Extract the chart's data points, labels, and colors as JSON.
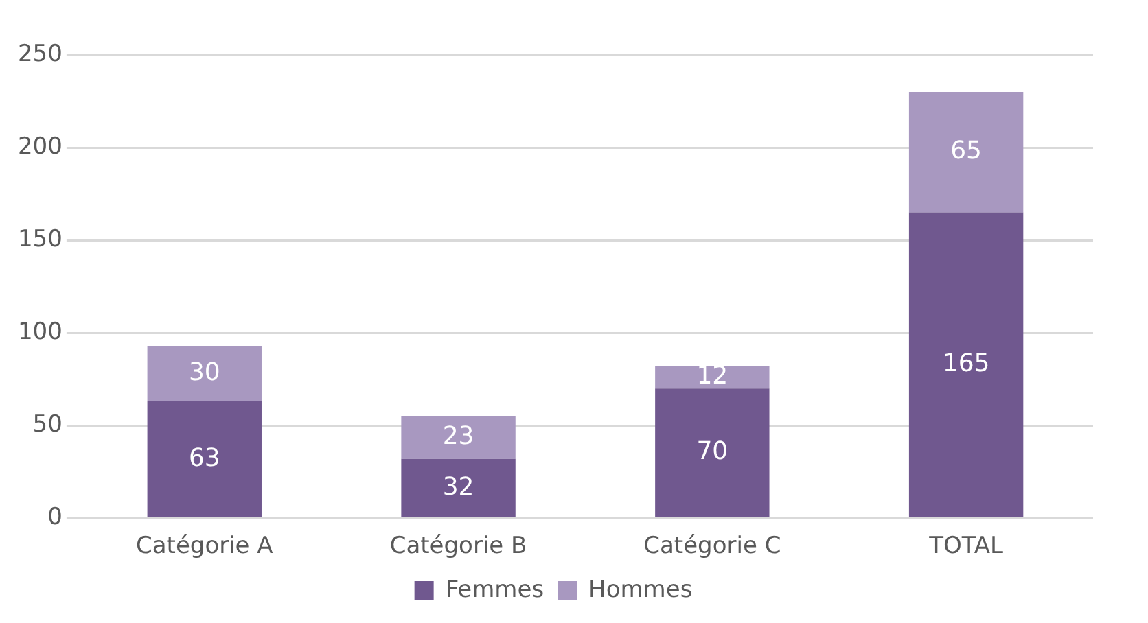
{
  "chart_data": {
    "type": "bar",
    "stacked": true,
    "categories": [
      "Catégorie A",
      "Catégorie B",
      "Catégorie C",
      "TOTAL"
    ],
    "series": [
      {
        "name": "Femmes",
        "color": "#70588f",
        "values": [
          63,
          32,
          70,
          165
        ]
      },
      {
        "name": "Hommes",
        "color": "#a898c0",
        "values": [
          30,
          23,
          12,
          65
        ]
      }
    ],
    "ylim": [
      0,
      250
    ],
    "yticks": [
      0,
      50,
      100,
      150,
      200,
      250
    ],
    "grid": "y",
    "legend": "bottom",
    "data_labels": true
  }
}
